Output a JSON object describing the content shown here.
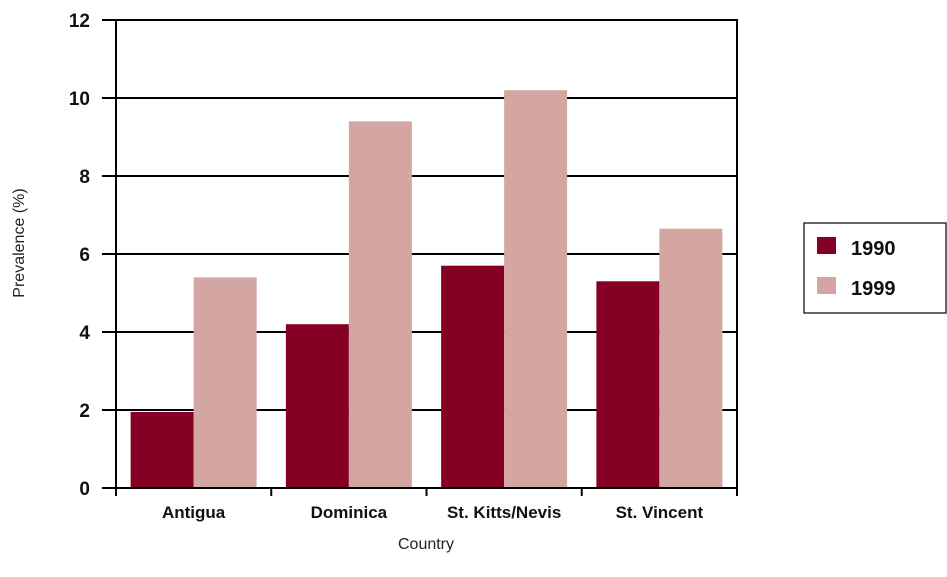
{
  "chart_data": {
    "type": "bar",
    "title": "",
    "xlabel": "Country",
    "ylabel": "Prevalence (%)",
    "categories": [
      "Antigua",
      "Dominica",
      "St. Kitts/Nevis",
      "St. Vincent"
    ],
    "series": [
      {
        "name": "1990",
        "values": [
          1.95,
          4.2,
          5.7,
          5.3
        ],
        "color": "#850024"
      },
      {
        "name": "1999",
        "values": [
          5.4,
          9.4,
          10.2,
          6.65
        ],
        "color": "#d4a6a2"
      }
    ],
    "ylim": [
      0,
      12
    ],
    "yticks": [
      0,
      2,
      4,
      6,
      8,
      10,
      12
    ],
    "grid": true,
    "legend_position": "right"
  }
}
